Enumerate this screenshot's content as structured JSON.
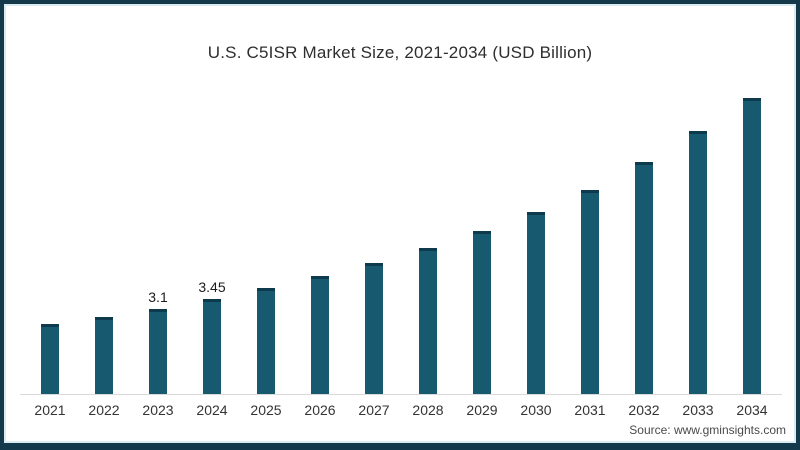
{
  "chart_data": {
    "type": "bar",
    "title": "U.S. C5ISR Market Size, 2021-2034 (USD Billion)",
    "categories": [
      "2021",
      "2022",
      "2023",
      "2024",
      "2025",
      "2026",
      "2027",
      "2028",
      "2029",
      "2030",
      "2031",
      "2032",
      "2033",
      "2034"
    ],
    "values": [
      2.55,
      2.8,
      3.1,
      3.45,
      3.85,
      4.3,
      4.75,
      5.3,
      5.9,
      6.6,
      7.4,
      8.4,
      9.5,
      10.7
    ],
    "bar_labels": [
      "",
      "",
      "3.1",
      "3.45",
      "",
      "",
      "",
      "",
      "",
      "",
      "",
      "",
      "",
      ""
    ],
    "xlabel": "",
    "ylabel": "",
    "ylim": [
      0,
      12.3
    ],
    "grid": false,
    "legend_position": "none",
    "bar_color": "#175A6F",
    "bar_cap_color": "#0E3A4D",
    "axis_line_color": "#d9d9d9"
  },
  "frame": {
    "border_color": "#14394B"
  },
  "source": {
    "label": "Source: www.gminsights.com"
  }
}
